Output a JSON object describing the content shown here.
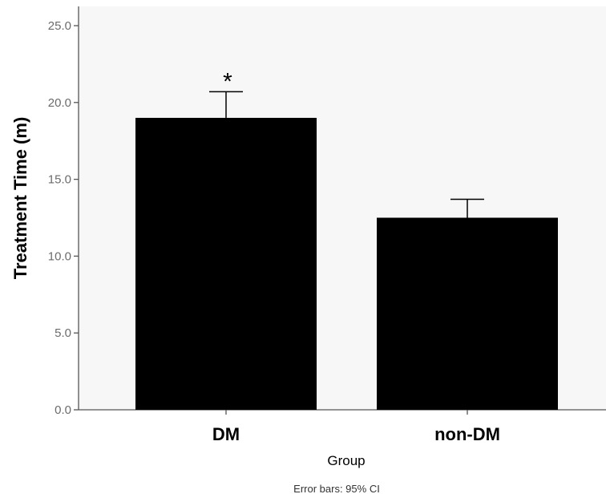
{
  "chart_data": {
    "type": "bar",
    "categories": [
      "DM",
      "non-DM"
    ],
    "values": [
      19.0,
      12.5
    ],
    "error_upper": [
      20.7,
      13.7
    ],
    "ylabel": "Treatment Time (m)",
    "xlabel": "Group",
    "ylim": [
      0,
      25
    ],
    "yticks": [
      "0.0",
      "5.0",
      "10.0",
      "15.0",
      "20.0",
      "25.0"
    ],
    "ytick_values": [
      0,
      5,
      10,
      15,
      20,
      25
    ],
    "annotations": [
      {
        "category": "DM",
        "text": "*"
      }
    ],
    "footnote": "Error bars: 95% CI",
    "grid": false,
    "colors": {
      "bar": "#000000",
      "plot_background": "#f7f7f7",
      "axis": "#555555"
    }
  }
}
